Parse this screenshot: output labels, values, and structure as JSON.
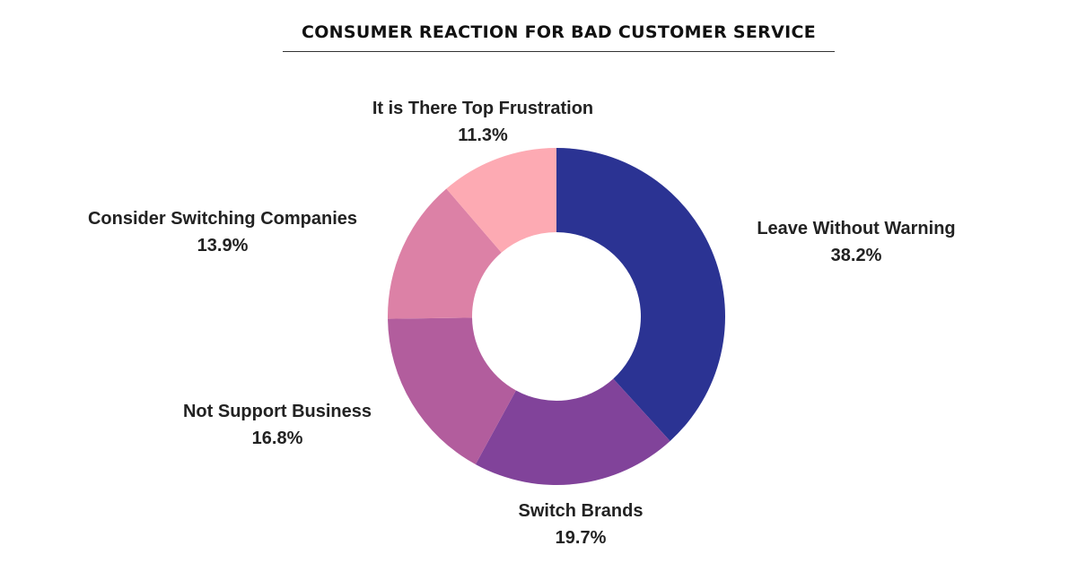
{
  "chart_data": {
    "type": "pie",
    "variant": "donut",
    "title": "CONSUMER REACTION FOR BAD CUSTOMER SERVICE",
    "slices": [
      {
        "label": "Leave Without Warning",
        "value": 38.2,
        "value_label": "38.2%",
        "color": "#2b3393"
      },
      {
        "label": "Switch Brands",
        "value": 19.7,
        "value_label": "19.7%",
        "color": "#81439a"
      },
      {
        "label": "Not Support Business",
        "value": 16.8,
        "value_label": "16.8%",
        "color": "#b25d9d"
      },
      {
        "label": "Consider Switching Companies",
        "value": 13.9,
        "value_label": "13.9%",
        "color": "#dc81a6"
      },
      {
        "label": "It is There Top Frustration",
        "value": 11.3,
        "value_label": "11.3%",
        "color": "#fdaab3"
      }
    ],
    "legend": "none",
    "start_angle": "top, clockwise"
  }
}
